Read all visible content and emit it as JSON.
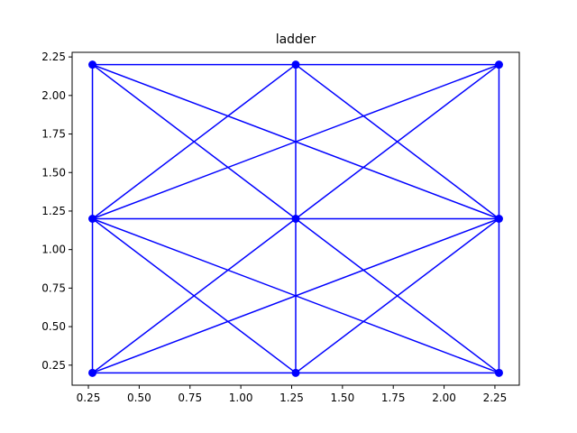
{
  "chart_data": {
    "type": "scatter",
    "title": "ladder",
    "xlabel": "",
    "ylabel": "",
    "xlim": [
      0.17,
      2.37
    ],
    "ylim": [
      0.12,
      2.28
    ],
    "x_ticks": [
      0.25,
      0.5,
      0.75,
      1.0,
      1.25,
      1.5,
      1.75,
      2.0,
      2.25
    ],
    "x_tick_labels": [
      "0.25",
      "0.50",
      "0.75",
      "1.00",
      "1.25",
      "1.50",
      "1.75",
      "2.00",
      "2.25"
    ],
    "y_ticks": [
      0.25,
      0.5,
      0.75,
      1.0,
      1.25,
      1.5,
      1.75,
      2.0,
      2.25
    ],
    "y_tick_labels": [
      "0.25",
      "0.50",
      "0.75",
      "1.00",
      "1.25",
      "1.50",
      "1.75",
      "2.00",
      "2.25"
    ],
    "grid": false,
    "color": "#0000ff",
    "nodes": [
      {
        "x": 0.27,
        "y": 0.2
      },
      {
        "x": 1.27,
        "y": 0.2
      },
      {
        "x": 2.27,
        "y": 0.2
      },
      {
        "x": 0.27,
        "y": 1.2
      },
      {
        "x": 1.27,
        "y": 1.2
      },
      {
        "x": 2.27,
        "y": 1.2
      },
      {
        "x": 0.27,
        "y": 2.2
      },
      {
        "x": 1.27,
        "y": 2.2
      },
      {
        "x": 2.27,
        "y": 2.2
      }
    ],
    "edges": [
      [
        0,
        1
      ],
      [
        1,
        2
      ],
      [
        3,
        4
      ],
      [
        4,
        5
      ],
      [
        6,
        7
      ],
      [
        7,
        8
      ],
      [
        0,
        3
      ],
      [
        3,
        6
      ],
      [
        1,
        4
      ],
      [
        4,
        7
      ],
      [
        2,
        5
      ],
      [
        5,
        8
      ],
      [
        0,
        4
      ],
      [
        1,
        3
      ],
      [
        1,
        5
      ],
      [
        2,
        4
      ],
      [
        0,
        5
      ],
      [
        2,
        3
      ],
      [
        3,
        7
      ],
      [
        4,
        6
      ],
      [
        4,
        8
      ],
      [
        5,
        7
      ],
      [
        3,
        8
      ],
      [
        5,
        6
      ]
    ]
  }
}
